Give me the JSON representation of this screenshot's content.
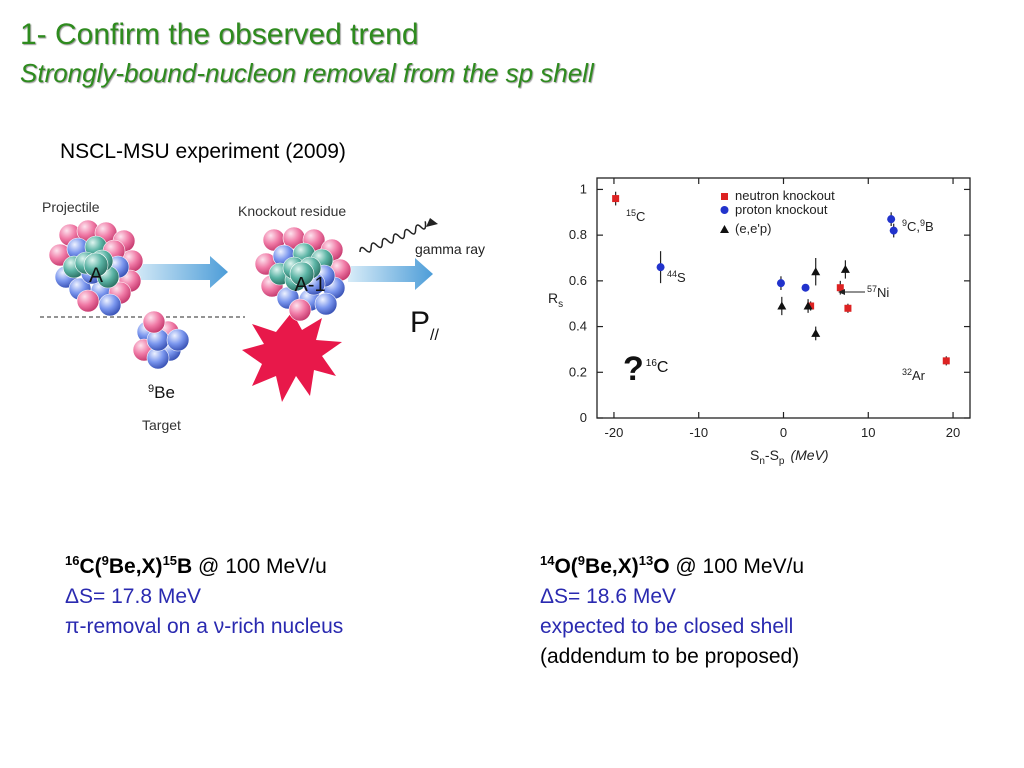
{
  "slide": {
    "title": "1- Confirm the observed trend",
    "subtitle": "Strongly-bound-nucleon removal from the sp shell",
    "experiment": "NSCL-MSU experiment (2009)"
  },
  "diagram": {
    "projectile_label": "Projectile",
    "residue_label": "Knockout residue",
    "gamma_label": "gamma ray",
    "nucleus_a": "A",
    "nucleus_a1": "A-1",
    "target_label": "Target",
    "target_mass": "9",
    "target_symbol": "Be",
    "momentum_symbol": "P",
    "momentum_sub": "//"
  },
  "chart_data": {
    "type": "scatter",
    "xlabel_main": "S",
    "xlabel_sub1": "n",
    "xlabel_sub2": "p",
    "xlabel_unit": "(MeV)",
    "ylabel_main": "R",
    "ylabel_sub": "s",
    "xlim": [
      -22,
      22
    ],
    "ylim": [
      0,
      1.05
    ],
    "xticks": [
      -20,
      -10,
      0,
      10,
      20
    ],
    "yticks": [
      0,
      0.2,
      0.4,
      0.6,
      0.8,
      1
    ],
    "legend_position": "top",
    "legend": [
      "neutron knockout",
      "proton knockout",
      "(e,e'p)"
    ],
    "series": [
      {
        "name": "neutron knockout",
        "marker": "square",
        "color": "#dd2222",
        "points": [
          [
            -19.8,
            0.96,
            0.03
          ],
          [
            3.2,
            0.49,
            0.02
          ],
          [
            6.7,
            0.57,
            0.03
          ],
          [
            7.6,
            0.48,
            0.02
          ],
          [
            19.2,
            0.25,
            0.02
          ]
        ]
      },
      {
        "name": "proton knockout",
        "marker": "circle",
        "color": "#2233cc",
        "points": [
          [
            -14.5,
            0.66,
            0.07
          ],
          [
            -0.3,
            0.59,
            0.03
          ],
          [
            2.6,
            0.57,
            0.01
          ],
          [
            12.7,
            0.87,
            0.03
          ],
          [
            13.0,
            0.82,
            0.03
          ]
        ]
      },
      {
        "name": "(e,e'p)",
        "marker": "triangle",
        "color": "#111111",
        "points": [
          [
            -0.2,
            0.49,
            0.04
          ],
          [
            2.9,
            0.49,
            0.03
          ],
          [
            3.8,
            0.64,
            0.06
          ],
          [
            3.8,
            0.37,
            0.03
          ],
          [
            7.3,
            0.65,
            0.04
          ]
        ]
      }
    ],
    "annotations": [
      {
        "mass": "15",
        "symbol": "C"
      },
      {
        "mass": "44",
        "symbol": "S"
      },
      {
        "mass": "9",
        "symbol": "C,",
        "mass2": "9",
        "symbol2": "B"
      },
      {
        "mass": "57",
        "symbol": "Ni"
      },
      {
        "mass": "32",
        "symbol": "Ar"
      },
      {
        "prefix": "?",
        "mass": "16",
        "symbol": "C"
      }
    ]
  },
  "left_col": {
    "mass1": "16",
    "el1": "C(",
    "mass2": "9",
    "el2": "Be,X)",
    "mass3": "15",
    "el3": "B",
    "energy": " @ 100 MeV/u",
    "line2": "ΔS= 17.8 MeV",
    "line3": "π-removal on a ν-rich nucleus"
  },
  "right_col": {
    "mass1": "14",
    "el1": "O(",
    "mass2": "9",
    "el2": "Be,X)",
    "mass3": "13",
    "el3": "O",
    "energy": " @ 100 MeV/u",
    "line2": "ΔS= 18.6 MeV",
    "line3": "expected to be closed shell",
    "line4": "(addendum to be proposed)"
  },
  "colors": {
    "title": "#2e8b1e",
    "accent_text": "#2a2ab0",
    "arrow": "#6fb0dd",
    "starburst": "#e8184a"
  }
}
